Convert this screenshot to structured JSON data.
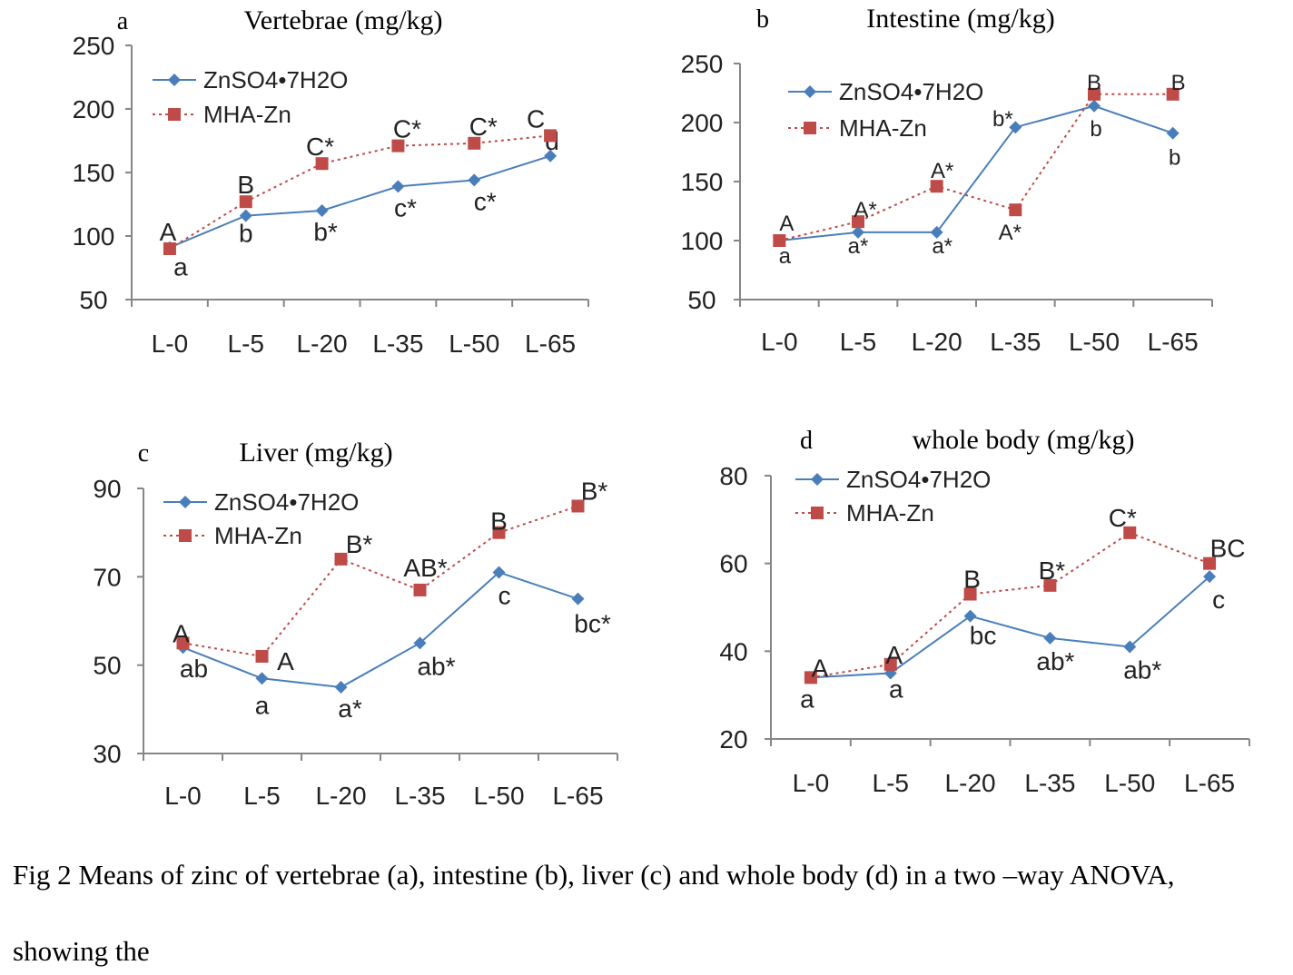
{
  "figure": {
    "caption_line1": "Fig 2 Means of zinc of vertebrae (a), intestine (b), liver (c) and whole body (d) in a two –way ANOVA,",
    "caption_line2": "showing the"
  },
  "colors": {
    "znso4": "#4a7ebb",
    "mhazn": "#be4b48",
    "axis": "#868686"
  },
  "chart_data": [
    {
      "panel": "a",
      "type": "line",
      "title": "Vertebrae (mg/kg)",
      "categories": [
        "L-0",
        "L-5",
        "L-20",
        "L-35",
        "L-50",
        "L-65"
      ],
      "ylim": [
        50,
        250
      ],
      "yticks": [
        50,
        100,
        150,
        200,
        250
      ],
      "legend_position": "top-left",
      "series": [
        {
          "name": "ZnSO4•7H2O",
          "values": [
            91,
            116,
            120,
            139,
            144,
            163
          ],
          "labels": [
            "a",
            "b",
            "b*",
            "c*",
            "c*",
            "d"
          ]
        },
        {
          "name": "MHA-Zn",
          "values": [
            90,
            127,
            157,
            171,
            173,
            179
          ],
          "labels": [
            "A",
            "B",
            "C*",
            "C*",
            "C*",
            "C"
          ]
        }
      ]
    },
    {
      "panel": "b",
      "type": "line",
      "title": "Intestine  (mg/kg)",
      "categories": [
        "L-0",
        "L-5",
        "L-20",
        "L-35",
        "L-50",
        "L-65"
      ],
      "ylim": [
        50,
        250
      ],
      "yticks": [
        50,
        100,
        150,
        200,
        250
      ],
      "legend_position": "top-left",
      "series": [
        {
          "name": "ZnSO4•7H2O",
          "values": [
            100,
            107,
            107,
            196,
            214,
            191
          ],
          "labels": [
            "a",
            "a*",
            "a*",
            "b*",
            "b",
            "b"
          ]
        },
        {
          "name": "MHA-Zn",
          "values": [
            100,
            116,
            146,
            126,
            224,
            224
          ],
          "labels": [
            "A",
            "A*",
            "A*",
            "A*",
            "B",
            "B"
          ]
        }
      ]
    },
    {
      "panel": "c",
      "type": "line",
      "title": "Liver  (mg/kg)",
      "categories": [
        "L-0",
        "L-5",
        "L-20",
        "L-35",
        "L-50",
        "L-65"
      ],
      "ylim": [
        30,
        90
      ],
      "yticks": [
        30,
        50,
        70,
        90
      ],
      "legend_position": "top-left",
      "series": [
        {
          "name": "ZnSO4•7H2O",
          "values": [
            54,
            47,
            45,
            55,
            71,
            65
          ],
          "labels": [
            "ab",
            "a",
            "a*",
            "ab*",
            "c",
            "bc*"
          ]
        },
        {
          "name": "MHA-Zn",
          "values": [
            55,
            52,
            74,
            67,
            80,
            86
          ],
          "labels": [
            "A",
            "A",
            "B*",
            "AB*",
            "B",
            "B*"
          ]
        }
      ]
    },
    {
      "panel": "d",
      "type": "line",
      "title": "whole  body (mg/kg)",
      "categories": [
        "L-0",
        "L-5",
        "L-20",
        "L-35",
        "L-50",
        "L-65"
      ],
      "ylim": [
        20,
        80
      ],
      "yticks": [
        20,
        40,
        60,
        80
      ],
      "legend_position": "top-left",
      "series": [
        {
          "name": "ZnSO4•7H2O",
          "values": [
            34,
            35,
            48,
            43,
            41,
            57
          ],
          "labels": [
            "a",
            "a",
            "bc",
            "ab*",
            "ab*",
            "c"
          ]
        },
        {
          "name": "MHA-Zn",
          "values": [
            34,
            37,
            53,
            55,
            67,
            60
          ],
          "labels": [
            "A",
            "A",
            "B",
            "B*",
            "C*",
            "BC"
          ]
        }
      ]
    }
  ]
}
